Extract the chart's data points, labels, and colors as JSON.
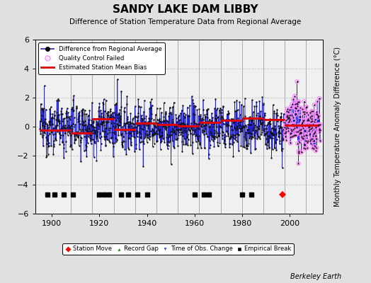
{
  "title": "SANDY LAKE DAM LIBBY",
  "subtitle": "Difference of Station Temperature Data from Regional Average",
  "ylabel": "Monthly Temperature Anomaly Difference (°C)",
  "xlabel_years": [
    1900,
    1920,
    1940,
    1960,
    1980,
    2000
  ],
  "xlim": [
    1893,
    2014
  ],
  "ylim": [
    -6,
    6
  ],
  "background_color": "#e0e0e0",
  "plot_bg_color": "#f0f0f0",
  "grid_color": "#c8c8c8",
  "vline_color": "#aaaaaa",
  "line_color": "#2222cc",
  "bias_color": "#dd0000",
  "qc_color": "#ff88ff",
  "marker_color": "#111111",
  "seed": 12345,
  "year_start": 1895,
  "year_end": 2012,
  "qc_start_year": 1998,
  "station_move_years": [
    1997
  ],
  "station_move_y": -4.7,
  "empirical_break_years": [
    1898,
    1901,
    1905,
    1909,
    1920,
    1922,
    1924,
    1929,
    1932,
    1936,
    1940,
    1960,
    1964,
    1966,
    1980,
    1984
  ],
  "empirical_break_y": -4.7,
  "vertical_lines": [
    1908,
    1917,
    1926,
    1935,
    1944,
    1953,
    1962,
    1971,
    1980,
    1989,
    1998,
    2007
  ],
  "bias_segments": [
    {
      "x": [
        1895,
        1908
      ],
      "y": [
        -0.25,
        -0.25
      ]
    },
    {
      "x": [
        1908,
        1917
      ],
      "y": [
        -0.45,
        -0.45
      ]
    },
    {
      "x": [
        1917,
        1926
      ],
      "y": [
        0.55,
        0.55
      ]
    },
    {
      "x": [
        1926,
        1935
      ],
      "y": [
        -0.2,
        -0.2
      ]
    },
    {
      "x": [
        1935,
        1944
      ],
      "y": [
        0.25,
        0.25
      ]
    },
    {
      "x": [
        1944,
        1953
      ],
      "y": [
        0.15,
        0.15
      ]
    },
    {
      "x": [
        1953,
        1962
      ],
      "y": [
        0.05,
        0.05
      ]
    },
    {
      "x": [
        1962,
        1971
      ],
      "y": [
        0.3,
        0.3
      ]
    },
    {
      "x": [
        1971,
        1980
      ],
      "y": [
        0.45,
        0.45
      ]
    },
    {
      "x": [
        1980,
        1989
      ],
      "y": [
        0.6,
        0.6
      ]
    },
    {
      "x": [
        1989,
        1998
      ],
      "y": [
        0.5,
        0.5
      ]
    },
    {
      "x": [
        1998,
        2012
      ],
      "y": [
        0.1,
        0.1
      ]
    }
  ],
  "berkeley_earth_text": "Berkeley Earth"
}
